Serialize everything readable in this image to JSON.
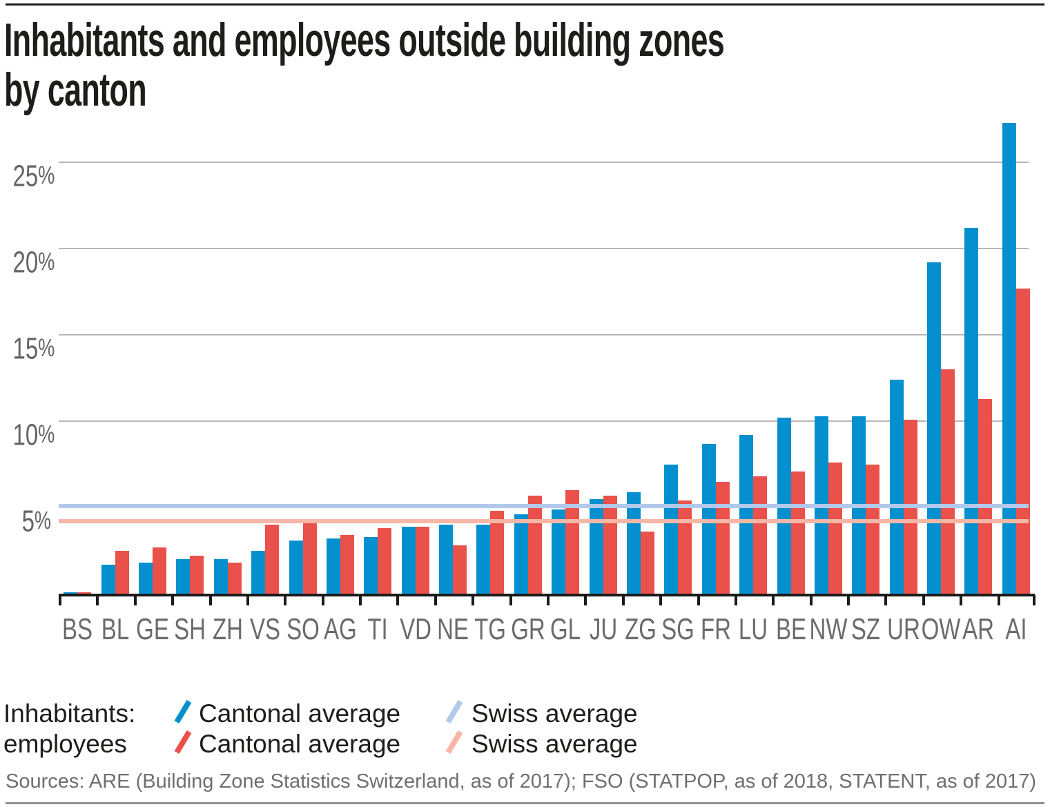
{
  "page": {
    "title_line1": "Inhabitants and employees outside building zones",
    "title_line2": "by canton",
    "source": "Sources: ARE (Building Zone Statistics Switzerland, as of 2017); FSO (STATPOP, as of 2018, STATENT, as of 2017)"
  },
  "legend": {
    "row1_label": "Inhabitants:",
    "row2_label": "employees",
    "row1_cantonal": "Cantonal average",
    "row1_swiss": "Swiss average",
    "row2_cantonal": "Cantonal average",
    "row2_swiss": "Swiss average"
  },
  "colors": {
    "inhabitants_bar": "#0490ce",
    "employees_bar": "#e9514a",
    "inhabitants_swiss_line": "#b2c9eb",
    "employees_swiss_line": "#f7b7a6",
    "gridline": "#b7b7b7",
    "axis": "#1a1a1a",
    "tick_text": "#646464",
    "title_text": "#1d1d1b",
    "source_text": "#6f6f6f"
  },
  "chart_data": {
    "type": "bar",
    "title": "Inhabitants and employees outside building zones by canton",
    "categories": [
      "BS",
      "BL",
      "GE",
      "SH",
      "ZH",
      "VS",
      "SO",
      "AG",
      "TI",
      "VD",
      "NE",
      "TG",
      "GR",
      "GL",
      "JU",
      "ZG",
      "SG",
      "FR",
      "LU",
      "BE",
      "NW",
      "SZ",
      "UR",
      "OW",
      "AR",
      "AI"
    ],
    "series": [
      {
        "name": "Inhabitants: Cantonal average",
        "color": "#0490ce",
        "values": [
          0.1,
          1.7,
          1.8,
          2.0,
          2.0,
          2.5,
          3.1,
          3.2,
          3.3,
          3.9,
          4.0,
          4.0,
          4.6,
          4.9,
          5.5,
          5.9,
          7.5,
          8.7,
          9.2,
          10.2,
          10.3,
          10.3,
          12.4,
          19.2,
          21.2,
          27.3
        ]
      },
      {
        "name": "employees: Cantonal average",
        "color": "#e9514a",
        "values": [
          0.1,
          2.5,
          2.7,
          2.2,
          1.8,
          4.0,
          4.1,
          3.4,
          3.8,
          3.9,
          2.8,
          4.8,
          5.7,
          6.0,
          5.7,
          3.6,
          5.4,
          6.5,
          6.8,
          7.1,
          7.6,
          7.5,
          10.1,
          13.0,
          11.3,
          17.7
        ]
      }
    ],
    "reference_lines": [
      {
        "name": "Inhabitants: Swiss average",
        "color": "#b2c9eb",
        "value": 5.1
      },
      {
        "name": "employees: Swiss average",
        "color": "#f7b7a6",
        "value": 4.2
      }
    ],
    "ylim": [
      0,
      27.5
    ],
    "yticks": [
      5,
      10,
      15,
      20,
      25
    ],
    "ytick_suffix": "%",
    "xlabel": "",
    "ylabel": "",
    "grid": "horizontal",
    "legend_position": "bottom"
  }
}
